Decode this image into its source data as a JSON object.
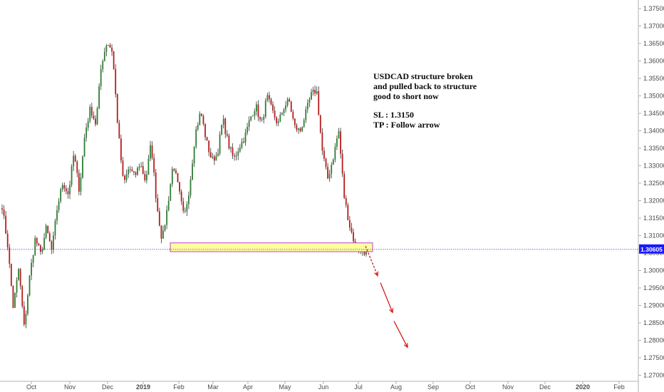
{
  "chart_data": {
    "type": "candlestick",
    "symbol_note": "",
    "y_axis": {
      "ticks": [
        "1.37500",
        "1.37000",
        "1.36500",
        "1.36000",
        "1.35500",
        "1.35000",
        "1.34500",
        "1.34000",
        "1.33500",
        "1.33000",
        "1.32500",
        "1.32000",
        "1.31500",
        "1.31000",
        "1.30500",
        "1.30000",
        "1.29500",
        "1.29000",
        "1.28500",
        "1.28000",
        "1.27500",
        "1.27000"
      ],
      "range": [
        1.2695,
        1.3765
      ]
    },
    "x_axis": {
      "ticks": [
        {
          "label": "Oct",
          "bold": false
        },
        {
          "label": "Nov",
          "bold": false
        },
        {
          "label": "Dec",
          "bold": false
        },
        {
          "label": "2019",
          "bold": true
        },
        {
          "label": "Feb",
          "bold": false
        },
        {
          "label": "Mar",
          "bold": false
        },
        {
          "label": "Apr",
          "bold": false
        },
        {
          "label": "May",
          "bold": false
        },
        {
          "label": "Jun",
          "bold": false
        },
        {
          "label": "Jul",
          "bold": false
        },
        {
          "label": "Aug",
          "bold": false
        },
        {
          "label": "Sep",
          "bold": false
        },
        {
          "label": "Oct",
          "bold": false
        },
        {
          "label": "Nov",
          "bold": false
        },
        {
          "label": "Dec",
          "bold": false
        },
        {
          "label": "2020",
          "bold": true
        },
        {
          "label": "Feb",
          "bold": false
        }
      ]
    },
    "price_series": [
      1.3185,
      1.3072,
      1.2895,
      1.3005,
      1.2835,
      1.2985,
      1.3092,
      1.3045,
      1.3122,
      1.3055,
      1.3182,
      1.3252,
      1.3218,
      1.3335,
      1.3228,
      1.3392,
      1.3465,
      1.3418,
      1.3592,
      1.3655,
      1.3628,
      1.3405,
      1.3245,
      1.3295,
      1.3268,
      1.3308,
      1.3255,
      1.3365,
      1.3192,
      1.3085,
      1.3185,
      1.3308,
      1.3232,
      1.3148,
      1.3242,
      1.3392,
      1.3455,
      1.3372,
      1.3315,
      1.3332,
      1.3435,
      1.3362,
      1.3318,
      1.3355,
      1.3382,
      1.3438,
      1.3472,
      1.3415,
      1.3498,
      1.3455,
      1.3418,
      1.3465,
      1.3488,
      1.3412,
      1.3398,
      1.3448,
      1.3502,
      1.3518,
      1.3345,
      1.3262,
      1.3322,
      1.3402,
      1.3212,
      1.3128,
      1.3072,
      1.3055,
      1.3055
    ],
    "current_price": "1.30605",
    "current_price_value": 1.30605,
    "support_zone": {
      "low": 1.3055,
      "high": 1.3078
    },
    "projection_arrows": [
      {
        "from": [
          1.307
        ],
        "to": [
          1.2985
        ]
      },
      {
        "from": [
          1.2965
        ],
        "to": [
          1.288
        ]
      },
      {
        "from": [
          1.2855
        ],
        "to": [
          1.278
        ]
      }
    ],
    "colors": {
      "up_candle": "#2e7d32",
      "down_candle": "#b71c1c",
      "wick": "#333333",
      "price_line": "#3f3fbf",
      "price_badge": "#1a1aff",
      "zone_fill": "#ffff9e",
      "zone_border": "#c040c0",
      "arrow": "#d01010",
      "axis": "#b0b0b0"
    },
    "annotation": [
      "USDCAD structure broken",
      "and pulled back to structure",
      "good to short now",
      "",
      "SL : 1.3150",
      "TP : Follow arrow"
    ]
  }
}
